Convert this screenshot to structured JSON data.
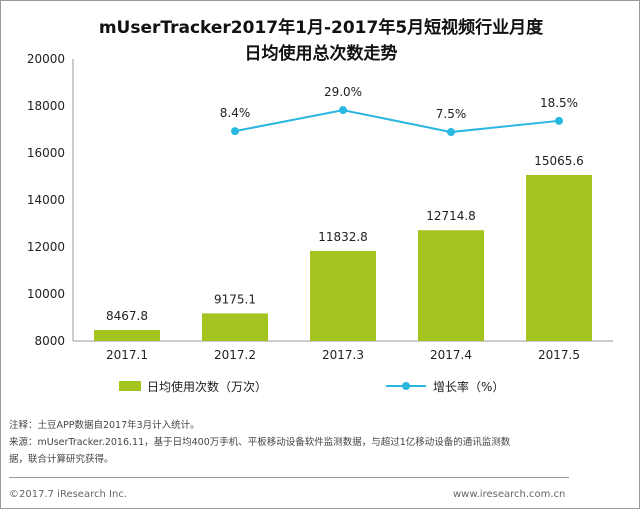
{
  "chart_data": {
    "type": "bar",
    "title": "mUserTracker2017年1月-2017年5月短视频行业月度",
    "subtitle": "日均使用总次数走势",
    "categories": [
      "2017.1",
      "2017.2",
      "2017.3",
      "2017.4",
      "2017.5"
    ],
    "series": [
      {
        "name": "日均使用次数（万次）",
        "type": "bar",
        "color": "#a4c51f",
        "values": [
          8467.8,
          9175.1,
          11832.8,
          12714.8,
          15065.6
        ],
        "labels": [
          "8467.8",
          "9175.1",
          "11832.8",
          "12714.8",
          "15065.6"
        ]
      },
      {
        "name": "增长率（%）",
        "type": "line",
        "color": "#29b6e0",
        "axis": "secondary",
        "values": [
          null,
          8.4,
          29.0,
          7.5,
          18.5
        ],
        "labels": [
          "",
          "8.4%",
          "29.0%",
          "7.5%",
          "18.5%"
        ]
      }
    ],
    "ylim": [
      8000,
      20000
    ],
    "yticks": [
      "8000",
      "10000",
      "12000",
      "14000",
      "16000",
      "18000",
      "20000"
    ],
    "y2lim": [
      -197,
      79
    ],
    "grid": false,
    "legend": "bottom"
  },
  "notes": {
    "note": "注释：土豆APP数据自2017年3月计入统计。",
    "source1": "来源：mUserTracker.2016.11，基于日均400万手机、平板移动设备软件监测数据，与超过1亿移动设备的通讯监测数",
    "source2": "据，联合计算研究获得。"
  },
  "footer": {
    "copyright": "©2017.7 iResearch Inc.",
    "website": "www.iresearch.com.cn"
  }
}
